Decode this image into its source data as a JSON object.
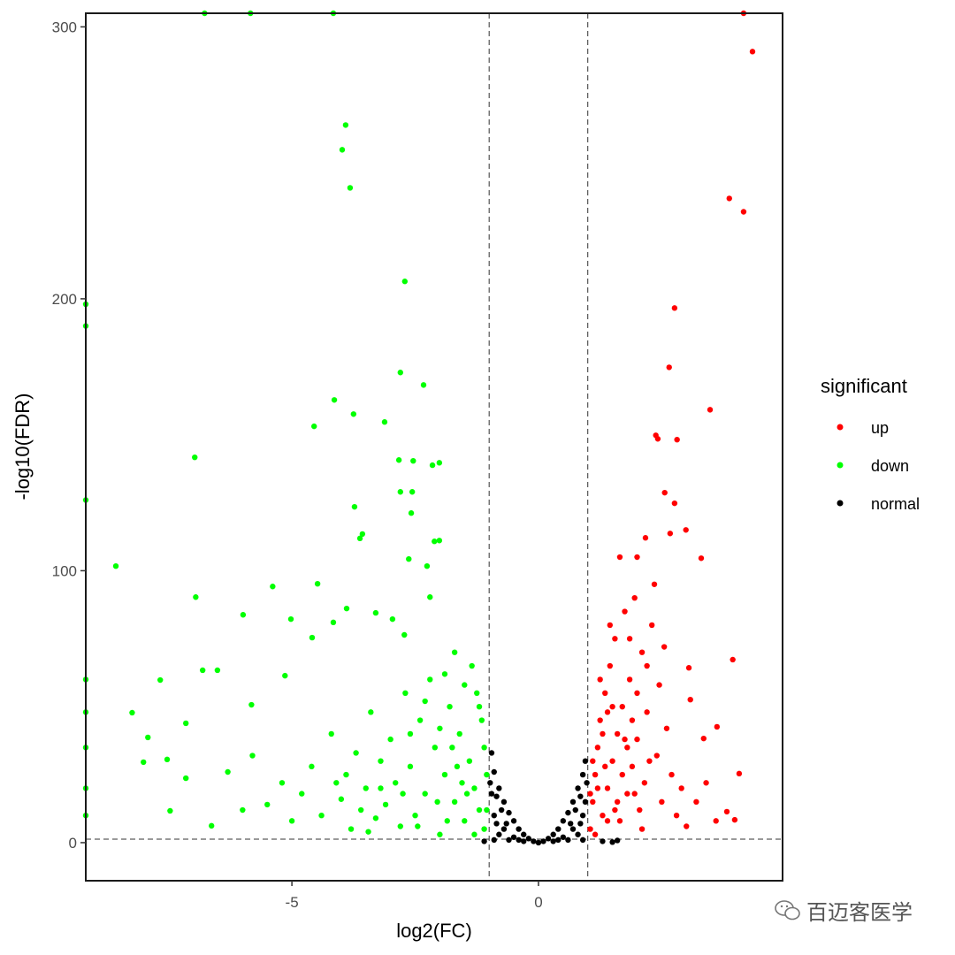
{
  "chart_data": {
    "type": "scatter",
    "title": "",
    "xlabel": "log2(FC)",
    "ylabel": "-log10(FDR)",
    "xlim": [
      -9.18,
      4.95
    ],
    "ylim": [
      -14,
      305
    ],
    "x_ticks": [
      {
        "value": -5,
        "label": "-5"
      },
      {
        "value": 0,
        "label": "0"
      }
    ],
    "y_ticks": [
      {
        "value": 0,
        "label": "0"
      },
      {
        "value": 100,
        "label": "100"
      },
      {
        "value": 200,
        "label": "200"
      },
      {
        "value": 300,
        "label": "300"
      }
    ],
    "grid": false,
    "reference_lines": {
      "vertical": [
        -1,
        1
      ],
      "horizontal": [
        1.3
      ]
    },
    "legend": {
      "title": "significant",
      "placement": "right"
    },
    "series": [
      {
        "name": "up",
        "color": "#FF0000",
        "points": [
          [
            4.16,
            305
          ],
          [
            4.34,
            290.9
          ],
          [
            3.87,
            236.9
          ],
          [
            4.16,
            232
          ],
          [
            2.76,
            196.6
          ],
          [
            2.65,
            174.8
          ],
          [
            3.48,
            159.2
          ],
          [
            2.38,
            149.8
          ],
          [
            2.42,
            148.5
          ],
          [
            2.81,
            148.2
          ],
          [
            2.56,
            128.7
          ],
          [
            2.76,
            124.8
          ],
          [
            2.99,
            115
          ],
          [
            2.67,
            113.7
          ],
          [
            2.17,
            112.1
          ],
          [
            3.3,
            104.6
          ],
          [
            3.94,
            67.3
          ],
          [
            3.05,
            64.3
          ],
          [
            3.08,
            52.6
          ],
          [
            3.62,
            42.6
          ],
          [
            4.07,
            25.4
          ],
          [
            3.35,
            38.3
          ],
          [
            3.82,
            11.4
          ],
          [
            3.98,
            8.4
          ],
          [
            1.05,
            5
          ],
          [
            1.1,
            15
          ],
          [
            1.15,
            25
          ],
          [
            1.2,
            35
          ],
          [
            1.25,
            45
          ],
          [
            1.3,
            10
          ],
          [
            1.35,
            55
          ],
          [
            1.4,
            20
          ],
          [
            1.45,
            65
          ],
          [
            1.5,
            30
          ],
          [
            1.55,
            75
          ],
          [
            1.6,
            40
          ],
          [
            1.65,
            8
          ],
          [
            1.7,
            50
          ],
          [
            1.75,
            85
          ],
          [
            1.8,
            18
          ],
          [
            1.85,
            60
          ],
          [
            1.9,
            28
          ],
          [
            1.95,
            90
          ],
          [
            2.0,
            38
          ],
          [
            2.05,
            12
          ],
          [
            2.1,
            70
          ],
          [
            2.15,
            22
          ],
          [
            2.2,
            48
          ],
          [
            2.3,
            80
          ],
          [
            2.4,
            32
          ],
          [
            2.5,
            15
          ],
          [
            2.6,
            42
          ],
          [
            2.7,
            25
          ],
          [
            2.8,
            10
          ],
          [
            2.9,
            20
          ],
          [
            3.0,
            6
          ],
          [
            3.2,
            15
          ],
          [
            3.4,
            22
          ],
          [
            3.6,
            8
          ],
          [
            1.1,
            30
          ],
          [
            1.2,
            20
          ],
          [
            1.3,
            40
          ],
          [
            1.4,
            8
          ],
          [
            1.5,
            50
          ],
          [
            1.6,
            15
          ],
          [
            1.7,
            25
          ],
          [
            1.8,
            35
          ],
          [
            1.9,
            45
          ],
          [
            2.0,
            55
          ],
          [
            2.1,
            5
          ],
          [
            2.2,
            65
          ],
          [
            1.25,
            60
          ],
          [
            1.45,
            80
          ],
          [
            2.35,
            95
          ],
          [
            1.65,
            105
          ],
          [
            2.0,
            105
          ],
          [
            1.15,
            3
          ],
          [
            1.35,
            28
          ],
          [
            1.55,
            12
          ],
          [
            1.75,
            38
          ],
          [
            1.95,
            18
          ],
          [
            2.25,
            30
          ],
          [
            2.45,
            58
          ],
          [
            2.55,
            72
          ],
          [
            1.05,
            18
          ],
          [
            1.4,
            48
          ],
          [
            1.85,
            75
          ]
        ]
      },
      {
        "name": "down",
        "color": "#00FF00",
        "points": [
          [
            -6.77,
            305
          ],
          [
            -5.84,
            305
          ],
          [
            -4.16,
            305
          ],
          [
            -3.91,
            263.9
          ],
          [
            -3.98,
            254.8
          ],
          [
            -3.82,
            240.8
          ],
          [
            -2.71,
            206.4
          ],
          [
            -2.8,
            172.9
          ],
          [
            -2.33,
            168.3
          ],
          [
            -4.14,
            162.8
          ],
          [
            -3.75,
            157.6
          ],
          [
            -3.12,
            154.7
          ],
          [
            -4.55,
            153.1
          ],
          [
            -6.97,
            141.7
          ],
          [
            -2.83,
            140.7
          ],
          [
            -2.54,
            140.4
          ],
          [
            -2.01,
            139.7
          ],
          [
            -2.15,
            138.8
          ],
          [
            -2.8,
            129
          ],
          [
            -2.56,
            129
          ],
          [
            -3.73,
            123.5
          ],
          [
            -2.58,
            121.2
          ],
          [
            -3.57,
            113.5
          ],
          [
            -3.62,
            111.9
          ],
          [
            -2.01,
            111.1
          ],
          [
            -2.11,
            110.8
          ],
          [
            -8.57,
            101.7
          ],
          [
            -2.63,
            104.3
          ],
          [
            -2.26,
            101.7
          ],
          [
            -4.48,
            95.2
          ],
          [
            -5.39,
            94.2
          ],
          [
            -6.95,
            90.3
          ],
          [
            -2.2,
            90.3
          ],
          [
            -5.99,
            83.8
          ],
          [
            -3.89,
            86.1
          ],
          [
            -5.02,
            82.2
          ],
          [
            -3.3,
            84.5
          ],
          [
            -4.16,
            81
          ],
          [
            -2.96,
            82.2
          ],
          [
            -4.59,
            75.4
          ],
          [
            -2.72,
            76.4
          ],
          [
            -6.81,
            63.4
          ],
          [
            -6.51,
            63.4
          ],
          [
            -7.67,
            59.8
          ],
          [
            -5.14,
            61.4
          ],
          [
            -8.24,
            47.8
          ],
          [
            -5.82,
            50.7
          ],
          [
            -7.92,
            38.7
          ],
          [
            -7.15,
            43.9
          ],
          [
            -8.01,
            29.6
          ],
          [
            -7.53,
            30.6
          ],
          [
            -7.15,
            23.7
          ],
          [
            -7.47,
            11.7
          ],
          [
            -6.63,
            6.2
          ],
          [
            -9.18,
            198
          ],
          [
            -9.18,
            190
          ],
          [
            -9.18,
            126
          ],
          [
            -9.18,
            60
          ],
          [
            -9.18,
            48
          ],
          [
            -9.18,
            35
          ],
          [
            -9.18,
            20
          ],
          [
            -9.18,
            10
          ],
          [
            -1.1,
            5
          ],
          [
            -1.2,
            12
          ],
          [
            -1.3,
            20
          ],
          [
            -1.4,
            30
          ],
          [
            -1.5,
            8
          ],
          [
            -1.6,
            40
          ],
          [
            -1.7,
            15
          ],
          [
            -1.8,
            50
          ],
          [
            -1.9,
            25
          ],
          [
            -2.0,
            3
          ],
          [
            -2.1,
            35
          ],
          [
            -2.2,
            60
          ],
          [
            -2.3,
            18
          ],
          [
            -2.4,
            45
          ],
          [
            -2.5,
            10
          ],
          [
            -2.6,
            28
          ],
          [
            -2.7,
            55
          ],
          [
            -2.8,
            6
          ],
          [
            -2.9,
            22
          ],
          [
            -3.0,
            38
          ],
          [
            -3.1,
            14
          ],
          [
            -3.2,
            30
          ],
          [
            -3.3,
            9
          ],
          [
            -3.4,
            48
          ],
          [
            -3.5,
            20
          ],
          [
            -3.6,
            12
          ],
          [
            -3.7,
            33
          ],
          [
            -3.8,
            5
          ],
          [
            -3.9,
            25
          ],
          [
            -4.0,
            16
          ],
          [
            -4.2,
            40
          ],
          [
            -4.4,
            10
          ],
          [
            -4.6,
            28
          ],
          [
            -4.8,
            18
          ],
          [
            -5.0,
            8
          ],
          [
            -5.2,
            22
          ],
          [
            -5.5,
            14
          ],
          [
            -5.8,
            32
          ],
          [
            -6.0,
            12
          ],
          [
            -6.3,
            26
          ],
          [
            -1.15,
            45
          ],
          [
            -1.25,
            55
          ],
          [
            -1.35,
            65
          ],
          [
            -1.5,
            58
          ],
          [
            -1.7,
            70
          ],
          [
            -1.9,
            62
          ],
          [
            -1.05,
            25
          ],
          [
            -1.1,
            35
          ],
          [
            -2.0,
            42
          ],
          [
            -2.3,
            52
          ],
          [
            -1.45,
            18
          ],
          [
            -1.65,
            28
          ],
          [
            -1.85,
            8
          ],
          [
            -2.6,
            40
          ],
          [
            -3.2,
            20
          ],
          [
            -1.05,
            12
          ],
          [
            -1.3,
            3
          ],
          [
            -1.55,
            22
          ],
          [
            -1.75,
            35
          ],
          [
            -2.05,
            15
          ],
          [
            -2.45,
            6
          ],
          [
            -2.75,
            18
          ],
          [
            -3.45,
            4
          ],
          [
            -4.1,
            22
          ],
          [
            -1.2,
            50
          ]
        ]
      },
      {
        "name": "normal",
        "color": "#000000",
        "points": [
          [
            0,
            0
          ],
          [
            0.1,
            0.5
          ],
          [
            -0.1,
            0.5
          ],
          [
            0.2,
            1.5
          ],
          [
            -0.2,
            1.5
          ],
          [
            0.3,
            3
          ],
          [
            -0.3,
            3
          ],
          [
            0.4,
            5
          ],
          [
            -0.4,
            5
          ],
          [
            0.5,
            8
          ],
          [
            -0.5,
            8
          ],
          [
            0.6,
            11
          ],
          [
            -0.6,
            11
          ],
          [
            0.7,
            15
          ],
          [
            -0.7,
            15
          ],
          [
            0.8,
            20
          ],
          [
            -0.8,
            20
          ],
          [
            0.9,
            25
          ],
          [
            -0.9,
            26
          ],
          [
            0.95,
            30
          ],
          [
            -0.95,
            33
          ],
          [
            0.5,
            2
          ],
          [
            -0.5,
            2
          ],
          [
            0.7,
            5
          ],
          [
            -0.7,
            5
          ],
          [
            0.9,
            10
          ],
          [
            -0.9,
            10
          ],
          [
            0.8,
            3
          ],
          [
            -0.8,
            3
          ],
          [
            0.95,
            15
          ],
          [
            -0.95,
            18
          ],
          [
            0.3,
            0.5
          ],
          [
            -0.3,
            0.5
          ],
          [
            0.6,
            1
          ],
          [
            -0.6,
            1
          ],
          [
            0.9,
            1
          ],
          [
            -0.9,
            1
          ],
          [
            0.85,
            7
          ],
          [
            -0.85,
            7
          ],
          [
            -0.98,
            22
          ],
          [
            0.98,
            22
          ],
          [
            1.5,
            0.2
          ],
          [
            -1.1,
            0.5
          ],
          [
            1.3,
            0.5
          ],
          [
            1.6,
            0.8
          ],
          [
            0.4,
            1
          ],
          [
            -0.4,
            1
          ],
          [
            0.65,
            7
          ],
          [
            -0.65,
            7
          ],
          [
            0.75,
            12
          ],
          [
            -0.75,
            12
          ],
          [
            0.85,
            17
          ],
          [
            -0.85,
            17
          ]
        ]
      }
    ]
  },
  "watermark": {
    "icon": "wechat-icon",
    "text": "百迈客医学"
  }
}
